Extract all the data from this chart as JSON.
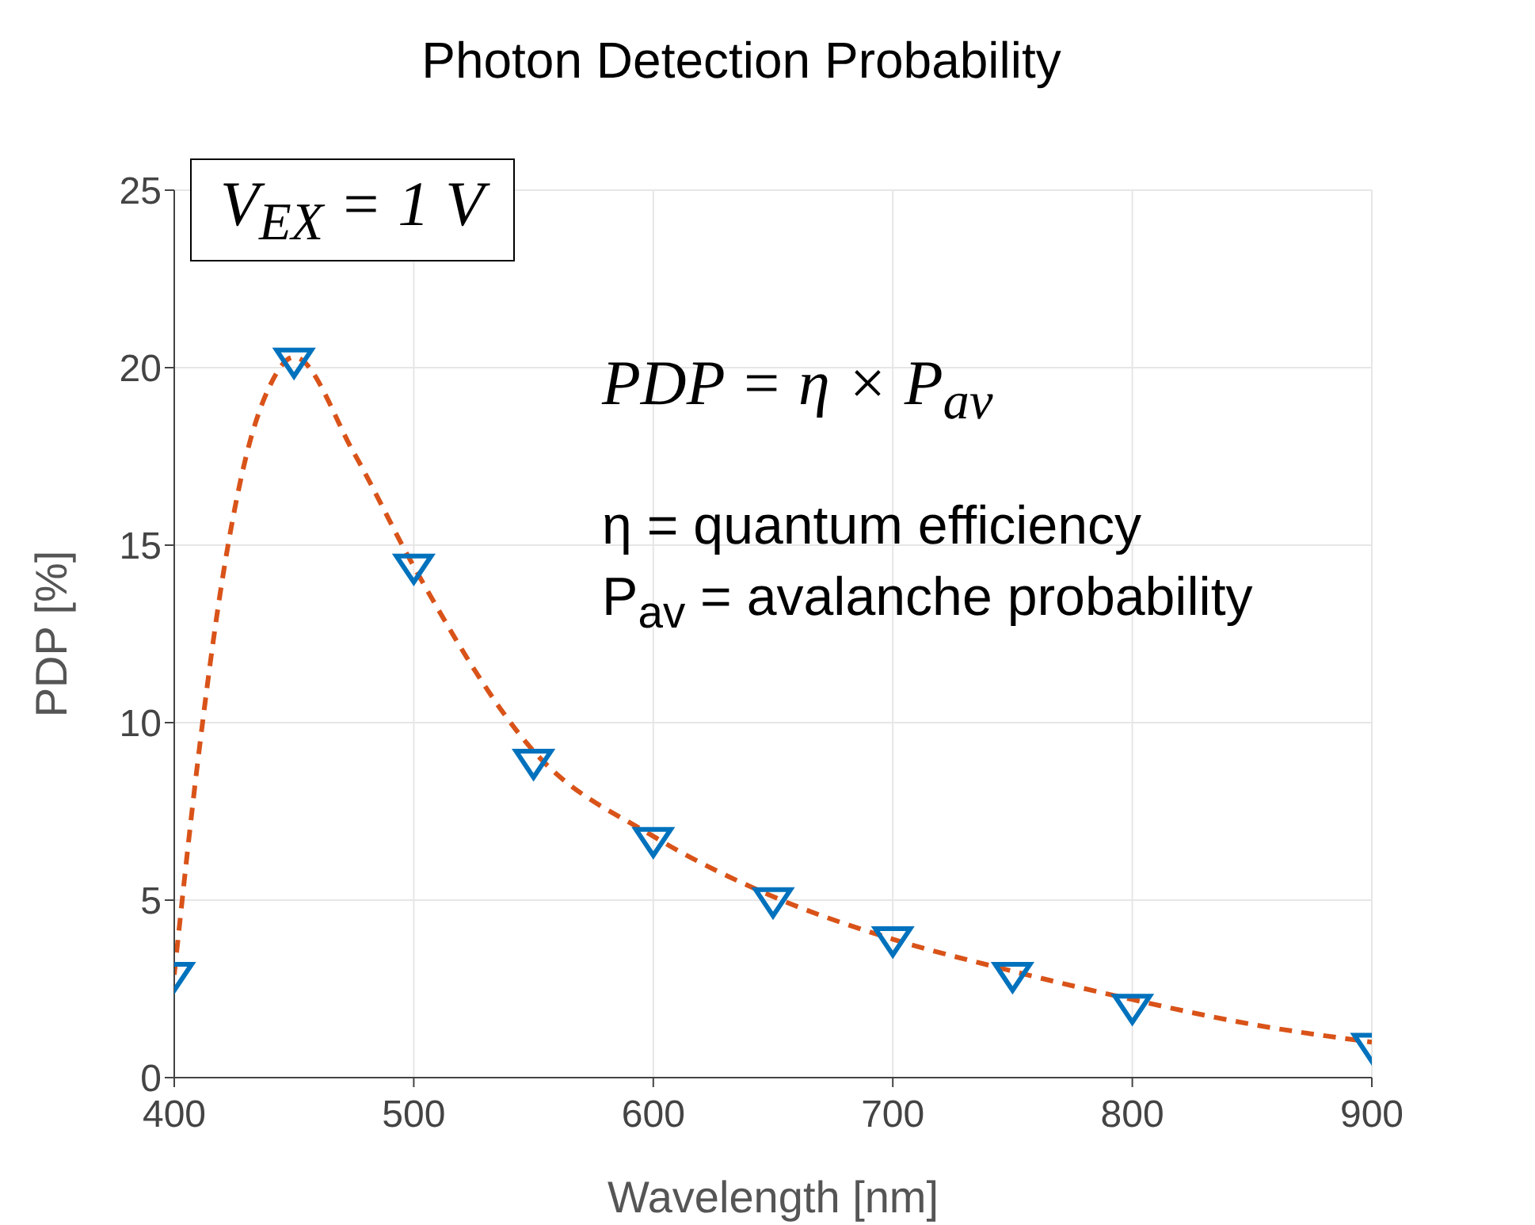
{
  "chart_data": {
    "type": "scatter",
    "title": "Photon Detection Probability",
    "xlabel": "Wavelength [nm]",
    "ylabel": "PDP [%]",
    "xlim": [
      400,
      900
    ],
    "xticks": [
      400,
      500,
      600,
      700,
      800,
      900
    ],
    "ylim": [
      0,
      25
    ],
    "yticks": [
      0,
      5,
      10,
      15,
      20,
      25
    ],
    "grid": true,
    "series": [
      {
        "type": "line",
        "color": "#d95319",
        "line_style": "dashed",
        "marker": "none",
        "x": [
          400,
          410,
          420,
          430,
          440,
          450,
          475,
          500,
          550,
          600,
          650,
          700,
          750,
          800,
          850,
          900
        ],
        "values": [
          2.9,
          9,
          14,
          17.5,
          19.5,
          20.3,
          17.6,
          14.4,
          9.2,
          6.8,
          5.1,
          3.9,
          3.0,
          2.2,
          1.5,
          1.0
        ]
      },
      {
        "color": "#0072bd",
        "marker": "triangle",
        "x": [
          400,
          450,
          500,
          550,
          600,
          650,
          700,
          750,
          800,
          900
        ],
        "values": [
          2.9,
          20.2,
          14.4,
          8.9,
          6.7,
          5.0,
          3.9,
          2.9,
          2.0,
          0.9
        ]
      }
    ],
    "annotations": [
      "V$_{EX}$ = 1 V",
      "PDP = η × P$_{av}$",
      "η = quantum efficiency",
      "P$_{av}$ = avalanche probability"
    ]
  }
}
